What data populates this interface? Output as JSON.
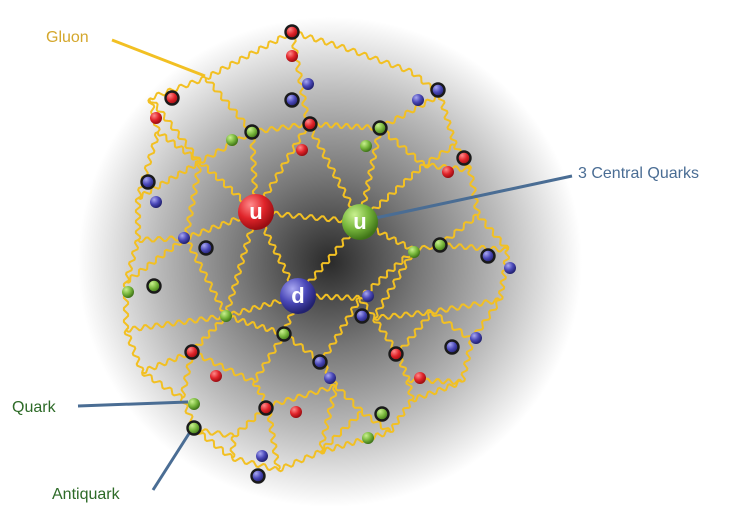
{
  "labels": {
    "gluon": "Gluon",
    "central_quarks": "3 Central Quarks",
    "quark": "Quark",
    "antiquark": "Antiquark"
  },
  "central_quarks": [
    {
      "letter": "u",
      "color": "red"
    },
    {
      "letter": "u",
      "color": "green"
    },
    {
      "letter": "d",
      "color": "blue"
    }
  ],
  "colors": {
    "gluon": "#f2c023",
    "red": "#e0242a",
    "green": "#79b83d",
    "blue": "#4a48b8",
    "label_gluon": "#d4a72c",
    "label_central": "#4a6d94",
    "label_quark": "#2d6a27",
    "pointer": "#4a6d94"
  }
}
